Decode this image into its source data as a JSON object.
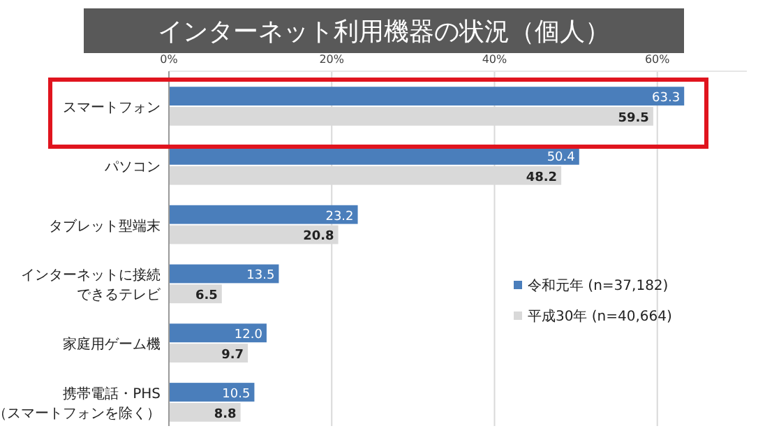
{
  "chart_data": {
    "type": "bar",
    "orientation": "horizontal",
    "title": "インターネット利用機器の状況（個人）",
    "categories": [
      "スマートフォン",
      "パソコン",
      "タブレット型端末",
      "インターネットに接続できるテレビ",
      "家庭用ゲーム機",
      "携帯電話・PHS（スマートフォンを除く）"
    ],
    "series": [
      {
        "name": "令和元年 (n=37,182)",
        "color": "#4a7ebb",
        "values": [
          63.3,
          50.4,
          23.2,
          13.5,
          12.0,
          10.5
        ],
        "value_labels": [
          "63.3",
          "50.4",
          "23.2",
          "13.5",
          "12.0",
          "10.5"
        ]
      },
      {
        "name": "平成30年 (n=40,664)",
        "color": "#d9d9d9",
        "values": [
          59.5,
          48.2,
          20.8,
          6.5,
          9.7,
          8.8
        ],
        "value_labels": [
          "59.5",
          "48.2",
          "20.8",
          "6.5",
          "9.7",
          "8.8"
        ]
      }
    ],
    "xlim": [
      0,
      71
    ],
    "xticks": [
      {
        "value": 0,
        "label": "0%"
      },
      {
        "value": 20,
        "label": "20%"
      },
      {
        "value": 40,
        "label": "40%"
      },
      {
        "value": 60,
        "label": "60%"
      }
    ],
    "grid": "x",
    "legend": "right"
  }
}
